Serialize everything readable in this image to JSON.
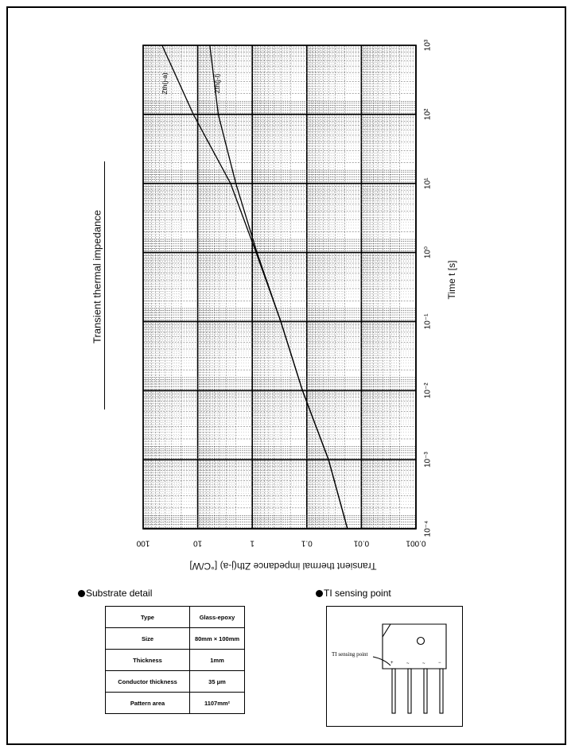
{
  "chart_data": {
    "type": "line",
    "title": "Transient thermal impedance",
    "xlabel": "Time t [s]",
    "ylabel": "Transient thermal impedance Zth(j-a) [°C/W]",
    "x_scale": "log",
    "y_scale": "log",
    "xlim": [
      0.0001,
      1000
    ],
    "ylim": [
      0.001,
      100
    ],
    "x_ticks": [
      "10⁻⁴",
      "10⁻³",
      "10⁻²",
      "10⁻¹",
      "10⁰",
      "10¹",
      "10²",
      "10³"
    ],
    "y_ticks": [
      "0.001",
      "0.01",
      "0.1",
      "1",
      "10",
      "100"
    ],
    "grid": true,
    "series": [
      {
        "name": "Zth(j-a)",
        "x": [
          0.0001,
          0.001,
          0.01,
          0.1,
          1,
          10,
          100,
          1000
        ],
        "y": [
          0.018,
          0.04,
          0.12,
          0.3,
          0.85,
          2.5,
          12,
          45
        ]
      },
      {
        "name": "Zth(j-l)",
        "x": [
          0.0001,
          0.001,
          0.01,
          0.1,
          1,
          10,
          100,
          1000
        ],
        "y": [
          0.018,
          0.04,
          0.12,
          0.3,
          0.82,
          2.0,
          4.2,
          6.0
        ]
      }
    ]
  },
  "substrate": {
    "title": "Substrate detail",
    "rows": [
      {
        "label": "Type",
        "value": "Glass-epoxy"
      },
      {
        "label": "Size",
        "value": "80mm × 100mm"
      },
      {
        "label": "Thickness",
        "value": "1mm"
      },
      {
        "label": "Conductor thickness",
        "value": "35 μm"
      },
      {
        "label": "Pattern area",
        "value": "1107mm²"
      }
    ]
  },
  "sensing": {
    "title": "TI sensing point",
    "label": "TI sensing point"
  }
}
